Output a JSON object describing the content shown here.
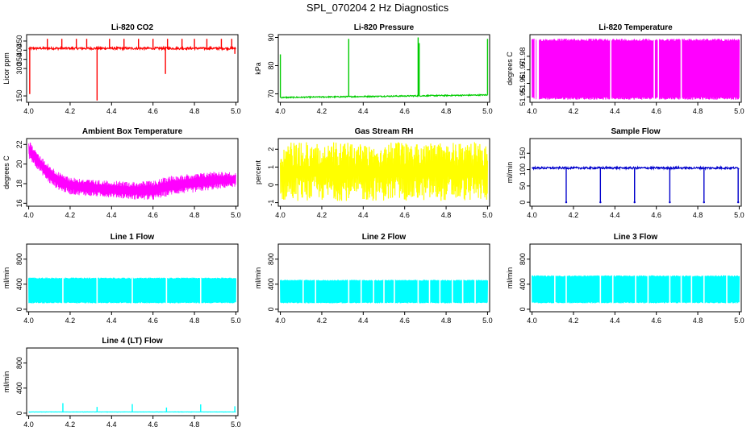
{
  "page": {
    "title": "SPL_070204  2 Hz Diagnostics"
  },
  "chart_data": [
    {
      "type": "line",
      "title": "Li-820 CO2",
      "ylabel": "Licor ppm",
      "xlabel": "",
      "xlim": [
        3.99,
        5.01
      ],
      "ylim": [
        115,
        485
      ],
      "x_ticks": [
        4.0,
        4.2,
        4.4,
        4.6,
        4.8,
        5.0
      ],
      "x_tick_labels": [
        "4.0",
        "4.2",
        "4.4",
        "4.6",
        "4.8",
        "5.0"
      ],
      "y_ticks": [
        150,
        300,
        350,
        400,
        450
      ],
      "y_tick_labels": [
        "150",
        "300",
        "350",
        "400",
        "450"
      ],
      "color": "#ff0000",
      "baseline": 410,
      "noise": 6,
      "spikes": [
        {
          "x": 4.005,
          "y": 160
        },
        {
          "x": 4.09,
          "y": 462
        },
        {
          "x": 4.16,
          "y": 462
        },
        {
          "x": 4.23,
          "y": 462
        },
        {
          "x": 4.28,
          "y": 462
        },
        {
          "x": 4.33,
          "y": 125
        },
        {
          "x": 4.39,
          "y": 462
        },
        {
          "x": 4.46,
          "y": 462
        },
        {
          "x": 4.53,
          "y": 462
        },
        {
          "x": 4.6,
          "y": 462
        },
        {
          "x": 4.66,
          "y": 270
        },
        {
          "x": 4.67,
          "y": 462
        },
        {
          "x": 4.74,
          "y": 462
        },
        {
          "x": 4.8,
          "y": 462
        },
        {
          "x": 4.86,
          "y": 462
        },
        {
          "x": 4.93,
          "y": 462
        },
        {
          "x": 4.98,
          "y": 462
        },
        {
          "x": 4.995,
          "y": 380
        }
      ]
    },
    {
      "type": "line",
      "title": "Li-820 Pressure",
      "ylabel": "kPa",
      "xlabel": "",
      "xlim": [
        3.99,
        5.01
      ],
      "ylim": [
        67,
        91
      ],
      "x_ticks": [
        4.0,
        4.2,
        4.4,
        4.6,
        4.8,
        5.0
      ],
      "x_tick_labels": [
        "4.0",
        "4.2",
        "4.4",
        "4.6",
        "4.8",
        "5.0"
      ],
      "y_ticks": [
        70,
        80,
        90
      ],
      "y_tick_labels": [
        "70",
        "80",
        "90"
      ],
      "color": "#00cc00",
      "baseline_start": 68.7,
      "baseline_end": 69.6,
      "noise": 0.2,
      "spikes": [
        {
          "x": 4.0,
          "y": 84
        },
        {
          "x": 4.33,
          "y": 89.5
        },
        {
          "x": 4.665,
          "y": 90
        },
        {
          "x": 4.67,
          "y": 88
        },
        {
          "x": 5.0,
          "y": 89.5
        }
      ]
    },
    {
      "type": "area",
      "title": "Li-820 Temperature",
      "ylabel": "degrees C",
      "xlabel": "",
      "xlim": [
        3.99,
        5.01
      ],
      "ylim": [
        51.946,
        51.996
      ],
      "x_ticks": [
        4.0,
        4.2,
        4.4,
        4.6,
        4.8,
        5.0
      ],
      "x_tick_labels": [
        "4.0",
        "4.2",
        "4.4",
        "4.6",
        "4.8",
        "5.0"
      ],
      "y_ticks": [
        51.95,
        51.96,
        51.97,
        51.98
      ],
      "y_tick_labels": [
        "51.95",
        "51.96",
        "51.97",
        "51.98"
      ],
      "color": "#ff00ff",
      "band_low": 51.948,
      "band_high": 51.993,
      "gaps": [
        4.015,
        4.025,
        4.03,
        4.38,
        4.59,
        4.61,
        4.72
      ]
    },
    {
      "type": "line",
      "title": "Ambient Box Temperature",
      "ylabel": "degrees C",
      "xlabel": "",
      "xlim": [
        3.99,
        5.01
      ],
      "ylim": [
        15.7,
        22.6
      ],
      "x_ticks": [
        4.0,
        4.2,
        4.4,
        4.6,
        4.8,
        5.0
      ],
      "x_tick_labels": [
        "4.0",
        "4.2",
        "4.4",
        "4.6",
        "4.8",
        "5.0"
      ],
      "y_ticks": [
        16,
        18,
        20,
        22
      ],
      "y_tick_labels": [
        "16",
        "18",
        "20",
        "22"
      ],
      "color": "#ff00ff",
      "profile": [
        {
          "x": 4.0,
          "lo": 20.6,
          "hi": 22.4
        },
        {
          "x": 4.05,
          "lo": 19.3,
          "hi": 21.0
        },
        {
          "x": 4.1,
          "lo": 18.0,
          "hi": 19.9
        },
        {
          "x": 4.15,
          "lo": 17.3,
          "hi": 19.1
        },
        {
          "x": 4.2,
          "lo": 16.9,
          "hi": 18.7
        },
        {
          "x": 4.3,
          "lo": 16.7,
          "hi": 18.4
        },
        {
          "x": 4.4,
          "lo": 16.6,
          "hi": 18.3
        },
        {
          "x": 4.5,
          "lo": 16.4,
          "hi": 18.2
        },
        {
          "x": 4.6,
          "lo": 16.3,
          "hi": 18.3
        },
        {
          "x": 4.65,
          "lo": 16.6,
          "hi": 18.6
        },
        {
          "x": 4.7,
          "lo": 16.9,
          "hi": 18.9
        },
        {
          "x": 4.8,
          "lo": 17.1,
          "hi": 19.0
        },
        {
          "x": 4.9,
          "lo": 17.4,
          "hi": 19.3
        },
        {
          "x": 5.0,
          "lo": 17.7,
          "hi": 19.1
        }
      ]
    },
    {
      "type": "area",
      "title": "Gas Stream RH",
      "ylabel": "percent",
      "xlabel": "",
      "xlim": [
        3.99,
        5.01
      ],
      "ylim": [
        -1.2,
        2.6
      ],
      "x_ticks": [
        4.0,
        4.2,
        4.4,
        4.6,
        4.8,
        5.0
      ],
      "x_tick_labels": [
        "4.0",
        "4.2",
        "4.4",
        "4.6",
        "4.8",
        "5.0"
      ],
      "y_ticks": [
        -1,
        0,
        1,
        2
      ],
      "y_tick_labels": [
        "-1",
        "0",
        "1",
        "2"
      ],
      "color": "#ffff00",
      "band_low": -0.9,
      "band_high": 2.4
    },
    {
      "type": "line",
      "title": "Sample Flow",
      "ylabel": "ml/min",
      "xlabel": "",
      "xlim": [
        3.99,
        5.01
      ],
      "ylim": [
        -12,
        195
      ],
      "x_ticks": [
        4.0,
        4.2,
        4.4,
        4.6,
        4.8,
        5.0
      ],
      "x_tick_labels": [
        "4.0",
        "4.2",
        "4.4",
        "4.6",
        "4.8",
        "5.0"
      ],
      "y_ticks": [
        0,
        50,
        100,
        150
      ],
      "y_tick_labels": [
        "0",
        "50",
        "100",
        "150"
      ],
      "color": "#0000cc",
      "baseline": 105,
      "noise": 3,
      "dips": [
        4.165,
        4.33,
        4.495,
        4.665,
        4.83,
        4.995
      ]
    },
    {
      "type": "area",
      "title": "Line 1 Flow",
      "ylabel": "ml/min",
      "xlabel": "",
      "xlim": [
        3.99,
        5.01
      ],
      "ylim": [
        -40,
        1040
      ],
      "x_ticks": [
        4.0,
        4.2,
        4.4,
        4.6,
        4.8,
        5.0
      ],
      "x_tick_labels": [
        "4.0",
        "4.2",
        "4.4",
        "4.6",
        "4.8",
        "5.0"
      ],
      "y_ticks": [
        0,
        400,
        800
      ],
      "y_tick_labels": [
        "0",
        "400",
        "800"
      ],
      "color": "#00ffff",
      "band_low": 95,
      "band_high": 505,
      "gaps": [
        4.165,
        4.33,
        4.5,
        4.665,
        4.83
      ]
    },
    {
      "type": "area",
      "title": "Line 2 Flow",
      "ylabel": "ml/min",
      "xlabel": "",
      "xlim": [
        3.99,
        5.01
      ],
      "ylim": [
        -40,
        1040
      ],
      "x_ticks": [
        4.0,
        4.2,
        4.4,
        4.6,
        4.8,
        5.0
      ],
      "x_tick_labels": [
        "4.0",
        "4.2",
        "4.4",
        "4.6",
        "4.8",
        "5.0"
      ],
      "y_ticks": [
        0,
        400,
        800
      ],
      "y_tick_labels": [
        "0",
        "400",
        "800"
      ],
      "color": "#00ffff",
      "band_low": 95,
      "band_high": 470,
      "gaps": [
        4.11,
        4.17,
        4.33,
        4.39,
        4.45,
        4.5,
        4.55,
        4.665,
        4.72,
        4.77,
        4.83,
        4.88,
        4.94
      ]
    },
    {
      "type": "area",
      "title": "Line 3 Flow",
      "ylabel": "ml/min",
      "xlabel": "",
      "xlim": [
        3.99,
        5.01
      ],
      "ylim": [
        -40,
        1040
      ],
      "x_ticks": [
        4.0,
        4.2,
        4.4,
        4.6,
        4.8,
        5.0
      ],
      "x_tick_labels": [
        "4.0",
        "4.2",
        "4.4",
        "4.6",
        "4.8",
        "5.0"
      ],
      "y_ticks": [
        0,
        400,
        800
      ],
      "y_tick_labels": [
        "0",
        "400",
        "800"
      ],
      "color": "#00ffff",
      "band_low": 95,
      "band_high": 540,
      "gaps": [
        4.11,
        4.165,
        4.33,
        4.39,
        4.5,
        4.56,
        4.665,
        4.72,
        4.77,
        4.83,
        4.94
      ]
    },
    {
      "type": "line",
      "title": "Line 4 (LT) Flow",
      "ylabel": "ml/min",
      "xlabel": "",
      "xlim": [
        3.99,
        5.01
      ],
      "ylim": [
        -40,
        1040
      ],
      "x_ticks": [
        4.0,
        4.2,
        4.4,
        4.6,
        4.8,
        5.0
      ],
      "x_tick_labels": [
        "4.0",
        "4.2",
        "4.4",
        "4.6",
        "4.8",
        "5.0"
      ],
      "y_ticks": [
        0,
        400,
        800
      ],
      "y_tick_labels": [
        "0",
        "400",
        "800"
      ],
      "color": "#00ffff",
      "baseline": 20,
      "noise": 2,
      "spikes": [
        {
          "x": 4.165,
          "y": 160
        },
        {
          "x": 4.33,
          "y": 100
        },
        {
          "x": 4.5,
          "y": 145
        },
        {
          "x": 4.665,
          "y": 90
        },
        {
          "x": 4.83,
          "y": 140
        },
        {
          "x": 4.995,
          "y": 110
        }
      ]
    }
  ]
}
